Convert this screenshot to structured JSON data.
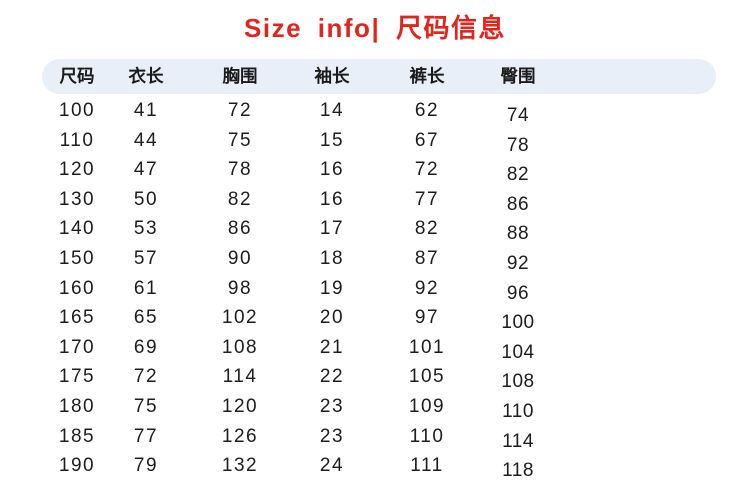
{
  "title": "Size info| 尺码信息",
  "colors": {
    "title_red": "#e0251e",
    "header_band": "#e9eff8",
    "text": "#1d1d1d"
  },
  "chart_data": {
    "type": "table",
    "title": "Size info| 尺码信息",
    "columns": [
      {
        "key": "size",
        "label": "尺码"
      },
      {
        "key": "top-length",
        "label": "衣长"
      },
      {
        "key": "chest",
        "label": "胸围"
      },
      {
        "key": "sleeve-length",
        "label": "袖长"
      },
      {
        "key": "pants-length",
        "label": "裤长"
      },
      {
        "key": "hip",
        "label": "臀围"
      }
    ],
    "rows": [
      [
        100,
        41,
        72,
        14,
        62,
        74
      ],
      [
        110,
        44,
        75,
        15,
        67,
        78
      ],
      [
        120,
        47,
        78,
        16,
        72,
        82
      ],
      [
        130,
        50,
        82,
        16,
        77,
        86
      ],
      [
        140,
        53,
        86,
        17,
        82,
        88
      ],
      [
        150,
        57,
        90,
        18,
        87,
        92
      ],
      [
        160,
        61,
        98,
        19,
        92,
        96
      ],
      [
        165,
        65,
        102,
        20,
        97,
        100
      ],
      [
        170,
        69,
        108,
        21,
        101,
        104
      ],
      [
        175,
        72,
        114,
        22,
        105,
        108
      ],
      [
        180,
        75,
        120,
        23,
        109,
        110
      ],
      [
        185,
        77,
        126,
        23,
        110,
        114
      ],
      [
        190,
        79,
        132,
        24,
        111,
        118
      ]
    ]
  }
}
